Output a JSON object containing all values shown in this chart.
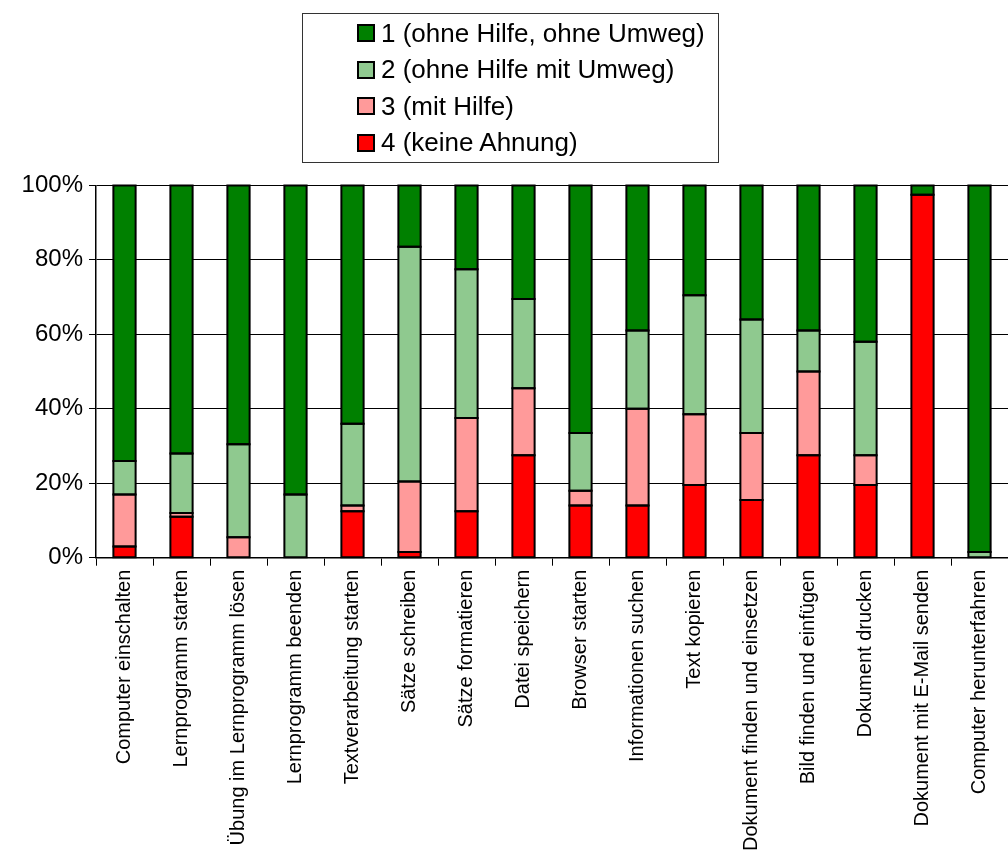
{
  "chart_data": {
    "type": "bar",
    "stacked": true,
    "categories": [
      "Computer einschalten",
      "Lernprogramm starten",
      "Übung im Lernprogramm lösen",
      "Lernprogramm beenden",
      "Textverarbeitung starten",
      "Sätze schreiben",
      "Sätze formatieren",
      "Datei speichern",
      "Browser starten",
      "Informationen suchen",
      "Text kopieren",
      "Dokument finden und einsetzen",
      "Bild finden und einfügen",
      "Dokument drucken",
      "Dokument mit E-Mail senden",
      "Computer herunterfahren"
    ],
    "series": [
      {
        "name": "4 (keine Ahnung)",
        "color": "#ff0000",
        "values": [
          3,
          11,
          0,
          0,
          12.5,
          1.5,
          12.5,
          27.5,
          14,
          14,
          19.5,
          15.5,
          27.5,
          19.5,
          97.5,
          0
        ]
      },
      {
        "name": "3 (mit Hilfe)",
        "color": "#ff9a9a",
        "values": [
          14,
          1,
          5.5,
          0,
          1.5,
          19,
          25,
          18,
          4,
          26,
          19,
          18,
          22.5,
          8,
          0,
          0
        ]
      },
      {
        "name": "2 (ohne Hilfe mit Umweg)",
        "color": "#8fc98f",
        "values": [
          9,
          16,
          25,
          17,
          22,
          63,
          40,
          24,
          15.5,
          21,
          32,
          30.5,
          11,
          30.5,
          0,
          1.5
        ]
      },
      {
        "name": "1 (ohne Hilfe, ohne Umweg)",
        "color": "#008000",
        "values": [
          74,
          72,
          69.5,
          83,
          64,
          16.5,
          22.5,
          30.5,
          66.5,
          39,
          29.5,
          36,
          39,
          42,
          2.5,
          98.5
        ]
      }
    ],
    "ylim": [
      0,
      100
    ],
    "yticks": [
      {
        "value": 0,
        "label": "0%"
      },
      {
        "value": 20,
        "label": "20%"
      },
      {
        "value": 40,
        "label": "40%"
      },
      {
        "value": 60,
        "label": "60%"
      },
      {
        "value": 80,
        "label": "80%"
      },
      {
        "value": 100,
        "label": "100%"
      }
    ],
    "grid": "y",
    "legend": "top"
  }
}
